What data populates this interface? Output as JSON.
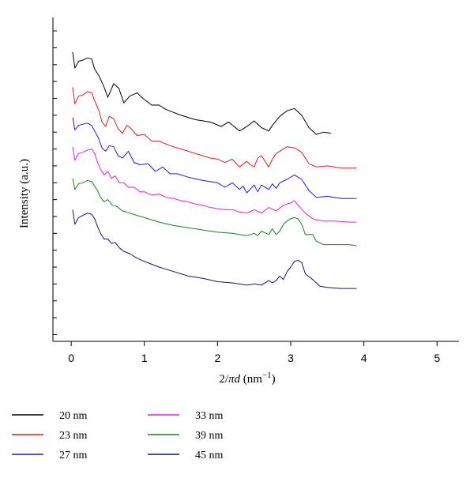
{
  "chart_data": {
    "type": "line",
    "xlabel": "2/πd (nm⁻¹)",
    "xlabel_parts": {
      "prefix": "2/",
      "pi": "π",
      "d": "d",
      "open": " (nm",
      "sup": "−1",
      "close": ")"
    },
    "ylabel": "Intensity (a.u.)",
    "xlim": [
      -0.25,
      5.3
    ],
    "ylim": [
      0,
      14.4
    ],
    "x_ticks": [
      0,
      1,
      2,
      3,
      4,
      5
    ],
    "x_tick_labels": [
      "0",
      "1",
      "2",
      "3",
      "4",
      "5"
    ],
    "y_ticks": [
      0.3,
      1.05,
      1.8,
      2.55,
      3.3,
      4.05,
      4.8,
      5.55,
      6.3,
      7.05,
      7.8,
      8.55,
      9.3,
      10.05,
      10.8,
      11.55,
      12.3,
      13.05,
      13.8
    ],
    "grid": false,
    "legend_position": "bottom",
    "series": [
      {
        "name": "20 nm",
        "color": "#000000",
        "x": [
          0.02,
          0.05,
          0.1,
          0.16,
          0.22,
          0.28,
          0.32,
          0.38,
          0.45,
          0.5,
          0.58,
          0.65,
          0.72,
          0.8,
          0.9,
          0.98,
          1.1,
          1.2,
          1.3,
          1.5,
          1.7,
          1.9,
          2.05,
          2.15,
          2.3,
          2.4,
          2.5,
          2.6,
          2.7,
          2.75,
          2.85,
          2.95,
          3.05,
          3.15,
          3.25,
          3.35,
          3.45,
          3.55
        ],
        "y": [
          12.85,
          12.15,
          12.45,
          12.5,
          12.6,
          12.55,
          12.1,
          11.8,
          11.3,
          10.85,
          11.45,
          11.25,
          10.6,
          10.9,
          11.05,
          10.8,
          10.5,
          10.5,
          10.3,
          10.05,
          9.85,
          9.75,
          9.55,
          9.75,
          9.35,
          9.55,
          9.8,
          9.5,
          9.35,
          9.6,
          10.0,
          10.25,
          10.35,
          10.05,
          9.5,
          9.2,
          9.3,
          9.25
        ]
      },
      {
        "name": "23 nm",
        "color": "#dd1e1e",
        "x": [
          0.02,
          0.05,
          0.1,
          0.16,
          0.22,
          0.28,
          0.32,
          0.38,
          0.42,
          0.47,
          0.52,
          0.58,
          0.64,
          0.7,
          0.76,
          0.82,
          0.9,
          1.0,
          1.1,
          1.2,
          1.35,
          1.5,
          1.7,
          1.9,
          2.0,
          2.1,
          2.2,
          2.3,
          2.4,
          2.45,
          2.5,
          2.55,
          2.6,
          2.7,
          2.75,
          2.8,
          2.85,
          2.95,
          3.05,
          3.15,
          3.25,
          3.35,
          3.5,
          3.7,
          3.9
        ],
        "y": [
          11.3,
          10.55,
          10.9,
          10.95,
          11.1,
          11.05,
          10.7,
          10.25,
          9.75,
          9.55,
          10.0,
          9.9,
          9.45,
          9.25,
          9.6,
          9.45,
          9.15,
          9.2,
          8.9,
          8.9,
          8.7,
          8.55,
          8.35,
          8.15,
          8.1,
          7.95,
          8.1,
          7.75,
          8.0,
          7.85,
          7.75,
          8.15,
          8.25,
          7.75,
          8.1,
          8.35,
          8.45,
          8.65,
          8.6,
          8.4,
          7.9,
          7.75,
          7.8,
          7.7,
          7.7
        ]
      },
      {
        "name": "27 nm",
        "color": "#1c1cd4",
        "x": [
          0.02,
          0.05,
          0.1,
          0.16,
          0.22,
          0.28,
          0.32,
          0.37,
          0.42,
          0.47,
          0.52,
          0.58,
          0.64,
          0.7,
          0.78,
          0.86,
          0.94,
          1.05,
          1.15,
          1.25,
          1.35,
          1.45,
          1.6,
          1.8,
          2.0,
          2.1,
          2.2,
          2.3,
          2.35,
          2.4,
          2.5,
          2.55,
          2.6,
          2.7,
          2.75,
          2.8,
          2.85,
          2.95,
          3.05,
          3.15,
          3.25,
          3.35,
          3.5,
          3.7,
          3.9
        ],
        "y": [
          9.95,
          9.4,
          9.6,
          9.65,
          9.7,
          9.6,
          9.35,
          9.05,
          8.6,
          8.45,
          8.7,
          8.65,
          8.25,
          8.15,
          8.45,
          7.95,
          7.85,
          7.9,
          7.55,
          7.75,
          7.45,
          7.45,
          7.3,
          7.15,
          7.05,
          6.85,
          7.05,
          6.75,
          6.9,
          6.6,
          6.95,
          6.65,
          6.95,
          6.75,
          7.0,
          6.8,
          7.05,
          7.2,
          7.4,
          7.2,
          6.7,
          6.4,
          6.45,
          6.35,
          6.35
        ]
      },
      {
        "name": "33 nm",
        "color": "#e41ce4",
        "x": [
          0.02,
          0.05,
          0.1,
          0.16,
          0.22,
          0.28,
          0.32,
          0.36,
          0.4,
          0.45,
          0.5,
          0.55,
          0.6,
          0.66,
          0.72,
          0.78,
          0.86,
          0.94,
          1.0,
          1.1,
          1.2,
          1.3,
          1.4,
          1.5,
          1.6,
          1.7,
          1.8,
          1.9,
          2.0,
          2.1,
          2.2,
          2.3,
          2.4,
          2.5,
          2.6,
          2.7,
          2.8,
          2.9,
          3.0,
          3.05,
          3.1,
          3.2,
          3.3,
          3.35,
          3.45,
          3.6,
          3.8,
          3.9
        ],
        "y": [
          8.65,
          8.05,
          8.35,
          8.4,
          8.5,
          8.55,
          8.35,
          7.95,
          7.65,
          7.4,
          7.55,
          7.25,
          7.35,
          7.05,
          7.05,
          6.85,
          6.85,
          6.65,
          6.65,
          6.5,
          6.55,
          6.4,
          6.35,
          6.25,
          6.2,
          6.1,
          6.05,
          5.95,
          5.9,
          5.85,
          5.85,
          5.75,
          5.7,
          5.85,
          5.7,
          5.95,
          5.8,
          6.05,
          6.15,
          6.25,
          6.05,
          5.7,
          5.45,
          5.4,
          5.35,
          5.35,
          5.3,
          5.3
        ]
      },
      {
        "name": "39 nm",
        "color": "#1e7e1e",
        "x": [
          0.02,
          0.05,
          0.1,
          0.16,
          0.22,
          0.28,
          0.32,
          0.36,
          0.4,
          0.45,
          0.5,
          0.56,
          0.62,
          0.7,
          0.8,
          0.9,
          1.0,
          1.2,
          1.4,
          1.6,
          1.8,
          2.0,
          2.2,
          2.4,
          2.5,
          2.55,
          2.6,
          2.7,
          2.75,
          2.8,
          2.85,
          2.9,
          2.95,
          3.0,
          3.05,
          3.1,
          3.15,
          3.2,
          3.3,
          3.35,
          3.45,
          3.6,
          3.8,
          3.9
        ],
        "y": [
          7.25,
          6.75,
          7.0,
          7.05,
          7.15,
          7.1,
          6.9,
          6.7,
          6.4,
          6.2,
          6.3,
          6.05,
          6.0,
          5.8,
          5.7,
          5.6,
          5.5,
          5.3,
          5.15,
          5.05,
          4.95,
          4.85,
          4.8,
          4.7,
          4.8,
          4.7,
          4.9,
          4.75,
          5.0,
          4.75,
          4.9,
          5.2,
          5.35,
          5.45,
          5.5,
          5.45,
          5.2,
          4.75,
          4.75,
          4.45,
          4.3,
          4.3,
          4.3,
          4.25
        ]
      },
      {
        "name": "45 nm",
        "color": "#14146e",
        "x": [
          0.02,
          0.05,
          0.1,
          0.16,
          0.22,
          0.28,
          0.32,
          0.36,
          0.4,
          0.45,
          0.5,
          0.55,
          0.6,
          0.66,
          0.72,
          0.8,
          0.9,
          1.0,
          1.2,
          1.4,
          1.6,
          1.8,
          2.0,
          2.2,
          2.4,
          2.5,
          2.6,
          2.7,
          2.75,
          2.8,
          2.85,
          2.9,
          2.95,
          3.0,
          3.05,
          3.1,
          3.15,
          3.2,
          3.3,
          3.4,
          3.5,
          3.7,
          3.9
        ],
        "y": [
          5.85,
          5.2,
          5.5,
          5.6,
          5.7,
          5.65,
          5.45,
          5.1,
          4.8,
          4.55,
          4.55,
          4.35,
          4.4,
          4.15,
          4.0,
          3.9,
          3.7,
          3.55,
          3.3,
          3.1,
          2.9,
          2.8,
          2.65,
          2.6,
          2.5,
          2.55,
          2.5,
          2.7,
          2.6,
          2.7,
          2.9,
          2.75,
          3.1,
          3.3,
          3.55,
          3.6,
          3.5,
          3.0,
          2.75,
          2.45,
          2.4,
          2.35,
          2.35
        ]
      }
    ]
  }
}
